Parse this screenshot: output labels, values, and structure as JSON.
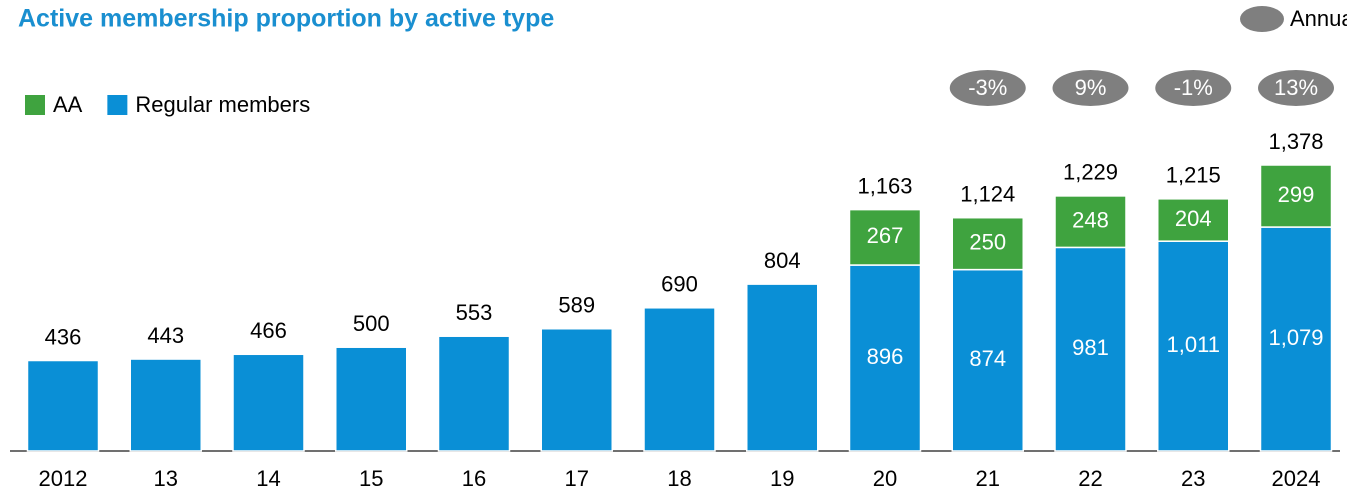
{
  "chart_data": {
    "type": "stacked_bar",
    "title": "Active membership proportion by active type",
    "categories": [
      "2012",
      "13",
      "14",
      "15",
      "16",
      "17",
      "18",
      "19",
      "20",
      "21",
      "22",
      "23",
      "2024"
    ],
    "series": [
      {
        "name": "Regular members",
        "color": "#0a8fd6",
        "values": [
          436,
          443,
          466,
          500,
          553,
          589,
          690,
          804,
          896,
          874,
          981,
          1011,
          1079
        ],
        "value_labels": [
          null,
          null,
          null,
          null,
          null,
          null,
          null,
          null,
          "896",
          "874",
          "981",
          "1,011",
          "1,079"
        ]
      },
      {
        "name": "AA",
        "color": "#3fa33f",
        "values": [
          null,
          null,
          null,
          null,
          null,
          null,
          null,
          null,
          267,
          250,
          248,
          204,
          299
        ]
      }
    ],
    "totals": {
      "values": [
        436,
        443,
        466,
        500,
        553,
        589,
        690,
        804,
        1163,
        1124,
        1229,
        1215,
        1378
      ],
      "value_labels": [
        "436",
        "443",
        "466",
        "500",
        "553",
        "589",
        "690",
        "804",
        "1,163",
        "1,124",
        "1,229",
        "1,215",
        "1,378"
      ]
    },
    "annual_change": {
      "name": "Annual change total members",
      "color": "#7f7f7f",
      "values": [
        null,
        null,
        null,
        null,
        null,
        null,
        null,
        null,
        null,
        -3,
        9,
        -1,
        13
      ],
      "value_labels": [
        null,
        null,
        null,
        null,
        null,
        null,
        null,
        null,
        null,
        "-3%",
        "9%",
        "-1%",
        "13%"
      ]
    }
  }
}
